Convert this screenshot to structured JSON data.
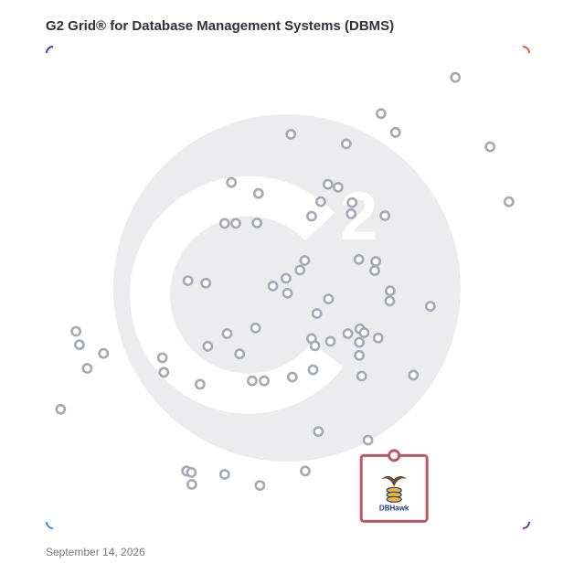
{
  "title": "G2 Grid® for Database Management Systems (DBMS)",
  "date": "September 14, 2026",
  "watermark_icon": "g2-logo-watermark",
  "highlight": {
    "label": "DBHawk",
    "icon": "dbhawk-logo",
    "frame_color": "#c0565e"
  },
  "colors": {
    "border_tl": "#3a3fa8",
    "border_tr": "#e8553a",
    "border_bl": "#2c9ad6",
    "border_br": "#7a33a0",
    "divider_h_left": "#3a5fb0",
    "divider_h_right": "#c0405a",
    "divider_v_top": "#9a4fa0",
    "divider_v_bottom": "#5a4fb8",
    "dot": "#a6a9b3",
    "watermark": "#ececee"
  },
  "chart_data": {
    "type": "scatter",
    "xlim": [
      0,
      100
    ],
    "ylim": [
      0,
      100
    ],
    "grid": false,
    "quadrant_split": [
      50,
      50
    ],
    "points": [
      {
        "x": 84.7,
        "y": 93.6
      },
      {
        "x": 69.3,
        "y": 86.1
      },
      {
        "x": 72.3,
        "y": 82.2
      },
      {
        "x": 91.9,
        "y": 79.2
      },
      {
        "x": 50.6,
        "y": 81.8
      },
      {
        "x": 62.1,
        "y": 79.8
      },
      {
        "x": 95.8,
        "y": 67.8
      },
      {
        "x": 38.3,
        "y": 71.8
      },
      {
        "x": 43.9,
        "y": 69.5
      },
      {
        "x": 58.3,
        "y": 71.4
      },
      {
        "x": 60.4,
        "y": 70.8
      },
      {
        "x": 56.8,
        "y": 67.8
      },
      {
        "x": 63.3,
        "y": 67.6
      },
      {
        "x": 63.1,
        "y": 65.3
      },
      {
        "x": 54.9,
        "y": 64.8
      },
      {
        "x": 70.1,
        "y": 64.9
      },
      {
        "x": 36.9,
        "y": 63.3
      },
      {
        "x": 39.2,
        "y": 63.3
      },
      {
        "x": 43.6,
        "y": 63.4
      },
      {
        "x": 64.7,
        "y": 55.8
      },
      {
        "x": 68.2,
        "y": 55.4
      },
      {
        "x": 53.5,
        "y": 55.6
      },
      {
        "x": 52.5,
        "y": 53.6
      },
      {
        "x": 68.0,
        "y": 53.5
      },
      {
        "x": 29.3,
        "y": 51.4
      },
      {
        "x": 33.0,
        "y": 50.9
      },
      {
        "x": 46.9,
        "y": 50.3
      },
      {
        "x": 49.6,
        "y": 51.9
      },
      {
        "x": 49.9,
        "y": 48.8
      },
      {
        "x": 58.4,
        "y": 47.6
      },
      {
        "x": 71.2,
        "y": 49.3
      },
      {
        "x": 71.1,
        "y": 47.2
      },
      {
        "x": 79.5,
        "y": 46.1
      },
      {
        "x": 56.0,
        "y": 44.6
      },
      {
        "x": 43.3,
        "y": 41.6
      },
      {
        "x": 37.4,
        "y": 40.4
      },
      {
        "x": 62.4,
        "y": 40.4
      },
      {
        "x": 64.9,
        "y": 41.4
      },
      {
        "x": 65.8,
        "y": 40.6
      },
      {
        "x": 68.7,
        "y": 39.5
      },
      {
        "x": 54.9,
        "y": 39.4
      },
      {
        "x": 58.8,
        "y": 38.8
      },
      {
        "x": 64.8,
        "y": 38.6
      },
      {
        "x": 33.4,
        "y": 37.8
      },
      {
        "x": 55.6,
        "y": 37.9
      },
      {
        "x": 40.0,
        "y": 36.2
      },
      {
        "x": 64.8,
        "y": 35.9
      },
      {
        "x": 6.1,
        "y": 40.9
      },
      {
        "x": 6.8,
        "y": 38.1
      },
      {
        "x": 11.8,
        "y": 36.3
      },
      {
        "x": 24.0,
        "y": 35.4
      },
      {
        "x": 24.3,
        "y": 32.4
      },
      {
        "x": 8.4,
        "y": 33.2
      },
      {
        "x": 55.2,
        "y": 32.9
      },
      {
        "x": 76.0,
        "y": 31.8
      },
      {
        "x": 50.9,
        "y": 31.4
      },
      {
        "x": 65.3,
        "y": 31.6
      },
      {
        "x": 42.6,
        "y": 30.6
      },
      {
        "x": 45.1,
        "y": 30.6
      },
      {
        "x": 31.8,
        "y": 29.9
      },
      {
        "x": 2.9,
        "y": 24.7
      },
      {
        "x": 56.3,
        "y": 20.1
      },
      {
        "x": 66.6,
        "y": 18.3
      },
      {
        "x": 53.6,
        "y": 11.9
      },
      {
        "x": 29.0,
        "y": 11.9
      },
      {
        "x": 30.0,
        "y": 11.6
      },
      {
        "x": 36.9,
        "y": 11.2
      },
      {
        "x": 30.1,
        "y": 9.1
      },
      {
        "x": 44.2,
        "y": 8.9
      },
      {
        "x": 72.0,
        "y": 13.6,
        "highlight": true,
        "label": "DBHawk"
      }
    ]
  }
}
